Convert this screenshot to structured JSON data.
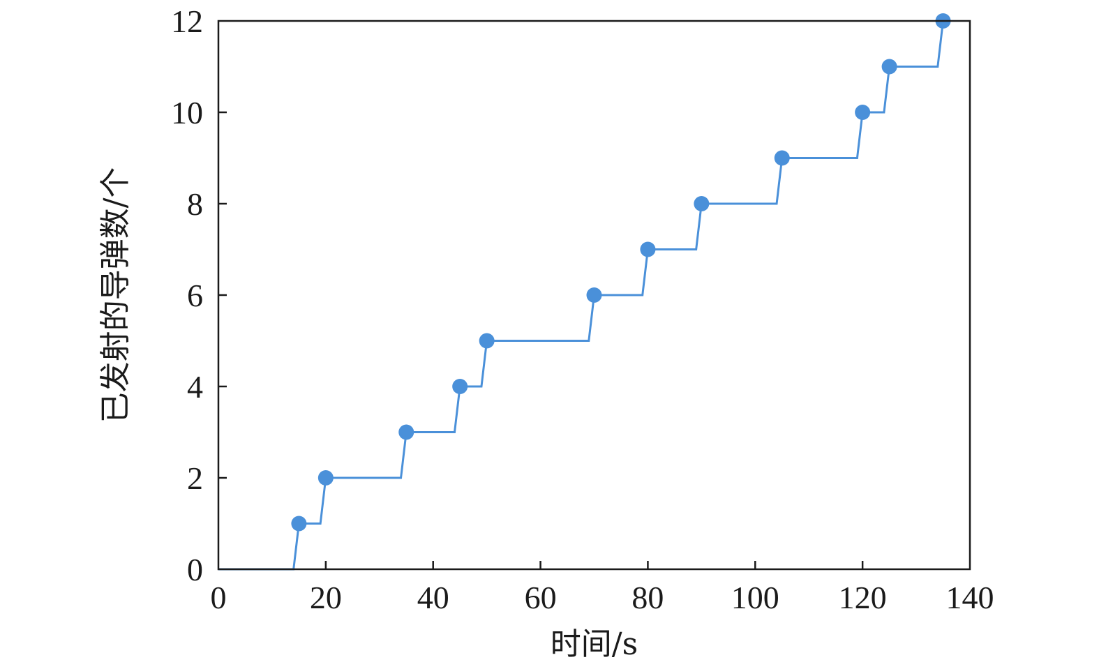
{
  "chart_data": {
    "type": "line",
    "step": "hv",
    "xlabel": "时间/s",
    "ylabel": "已发射的导弹数/个",
    "xlim": [
      0,
      140
    ],
    "ylim": [
      0,
      12
    ],
    "xticks": [
      0,
      20,
      40,
      60,
      80,
      100,
      120,
      140
    ],
    "yticks": [
      0,
      2,
      4,
      6,
      8,
      10,
      12
    ],
    "grid": false,
    "legend": "none",
    "color": "#4a90d9",
    "series": [
      {
        "x": [
          0,
          14,
          15,
          19,
          20,
          34,
          35,
          44,
          45,
          49,
          50,
          69,
          70,
          79,
          80,
          89,
          90,
          104,
          105,
          119,
          120,
          124,
          125,
          134,
          135
        ],
        "values": [
          0,
          0,
          1,
          1,
          2,
          2,
          3,
          3,
          4,
          4,
          5,
          5,
          6,
          6,
          7,
          7,
          8,
          8,
          9,
          9,
          10,
          10,
          11,
          11,
          12
        ]
      }
    ],
    "markers": [
      {
        "x": 15,
        "y": 1
      },
      {
        "x": 20,
        "y": 2
      },
      {
        "x": 35,
        "y": 3
      },
      {
        "x": 45,
        "y": 4
      },
      {
        "x": 50,
        "y": 5
      },
      {
        "x": 70,
        "y": 6
      },
      {
        "x": 80,
        "y": 7
      },
      {
        "x": 90,
        "y": 8
      },
      {
        "x": 105,
        "y": 9
      },
      {
        "x": 120,
        "y": 10
      },
      {
        "x": 125,
        "y": 11
      },
      {
        "x": 135,
        "y": 12
      }
    ]
  }
}
